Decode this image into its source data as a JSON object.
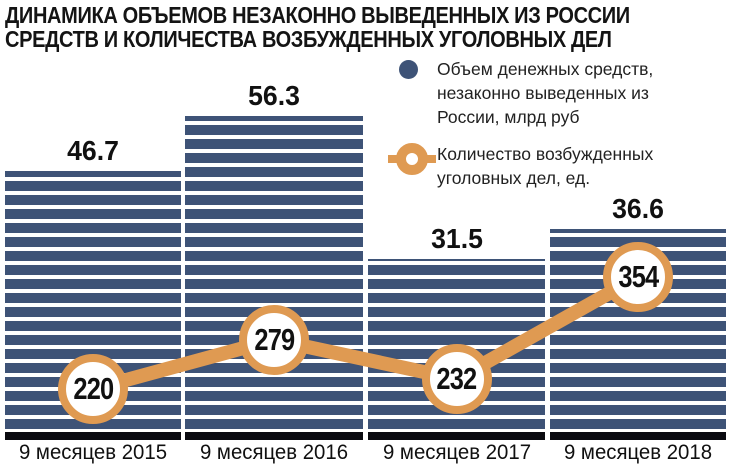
{
  "header": {
    "title_line1": "ДИНАМИКА ОБЪЕМОВ НЕЗАКОННО ВЫВЕДЕННЫХ ИЗ РОССИИ",
    "title_line2": "СРЕДСТВ И КОЛИЧЕСТВА ВОЗБУЖДЕННЫХ УГОЛОВНЫХ ДЕЛ"
  },
  "legend": {
    "items": [
      {
        "label": "Объем денежных средств, незаконно выведенных из России, млрд руб",
        "marker": "filled-circle",
        "color": "#3E5377"
      },
      {
        "label": "Количество возбужденных уголовных дел, ед.",
        "marker": "donut-on-line",
        "color": "#DF9A52"
      }
    ]
  },
  "chart_data": {
    "type": "bar",
    "title": "ДИНАМИКА ОБЪЕМОВ НЕЗАКОННО ВЫВЕДЕННЫХ ИЗ РОССИИ СРЕДСТВ И КОЛИЧЕСТВА ВОЗБУЖДЕННЫХ УГОЛОВНЫХ ДЕЛ",
    "categories": [
      "9 месяцев 2015",
      "9 месяцев 2016",
      "9 месяцев 2017",
      "9 месяцев 2018"
    ],
    "series": [
      {
        "name": "Объем денежных средств, незаконно выведенных из России, млрд руб",
        "type": "bar",
        "values": [
          46.7,
          56.3,
          31.5,
          36.6
        ],
        "color": "#3E5377"
      },
      {
        "name": "Количество возбужденных уголовных дел, ед.",
        "type": "line",
        "values": [
          220,
          279,
          232,
          354
        ],
        "color": "#DF9A52"
      }
    ],
    "xlabel": "",
    "ylabel": "",
    "grid": false,
    "legend_position": "top-right",
    "value_labels_shown": true
  },
  "colors": {
    "bar_blue": "#3E5377",
    "line_orange": "#DF9A52",
    "axis_black": "#0A0A10",
    "background": "#FFFFFF"
  }
}
